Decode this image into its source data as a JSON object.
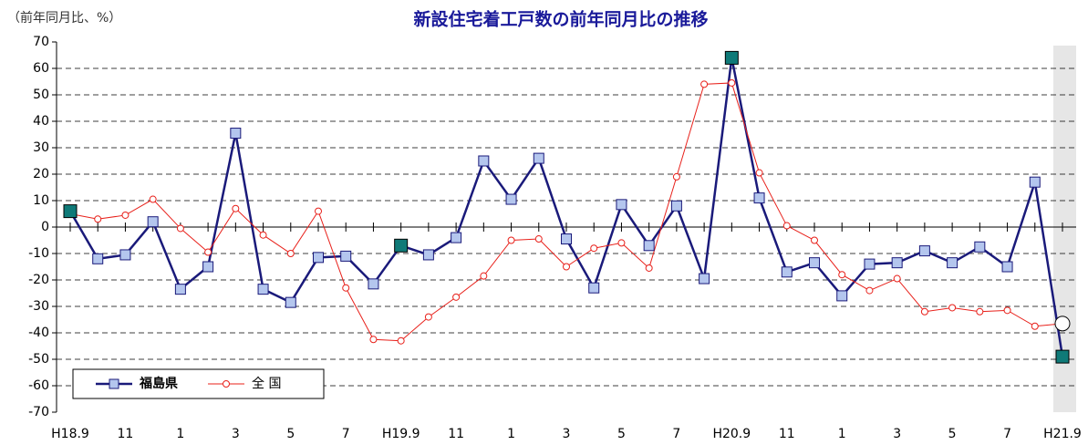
{
  "chart_data": {
    "type": "line",
    "title": "新設住宅着工戸数の前年同月比の推移",
    "y_axis_label": "（前年同月比、%）",
    "categories": [
      "H18.9",
      null,
      "11",
      null,
      "1",
      null,
      "3",
      null,
      "5",
      null,
      "7",
      null,
      "H19.9",
      null,
      "11",
      null,
      "1",
      null,
      "3",
      null,
      "5",
      null,
      "7",
      null,
      "H20.9",
      null,
      "11",
      null,
      "1",
      null,
      "3",
      null,
      "5",
      null,
      "7",
      null,
      "H21.9"
    ],
    "series": [
      {
        "name": "福島県",
        "color": "#1a1a7a",
        "marker_color": "#b4c6ee",
        "values": [
          6,
          -12,
          -10.5,
          2,
          -23.5,
          -15,
          35.5,
          -23.5,
          -28.5,
          -11.5,
          -11,
          -21.5,
          -7,
          -10.5,
          -4,
          25,
          10.5,
          26,
          -4.5,
          -23,
          8.5,
          -7,
          8,
          -19.5,
          64,
          11,
          -17,
          -13.5,
          -26,
          -14,
          -13.5,
          -9,
          -13.5,
          -7.5,
          -15,
          17,
          -49
        ]
      },
      {
        "name": "全 国",
        "color": "#e8201a",
        "marker_color": "#ffffff",
        "values": [
          5,
          3,
          4.5,
          10.5,
          -0.5,
          -9.5,
          7,
          -3,
          -10,
          6,
          -23,
          -42.5,
          -43,
          -34,
          -26.5,
          -18.5,
          -5,
          -4.5,
          -15,
          -8,
          -6,
          -15.5,
          19,
          54,
          54.5,
          20.5,
          0.5,
          -5,
          -18,
          -24,
          -19.5,
          -32,
          -30.5,
          -32,
          -31.5,
          -37.5,
          -36.5
        ]
      }
    ],
    "highlight_color": "#0f7a78",
    "ylim": [
      -70,
      70
    ],
    "yticks": [
      -70,
      -60,
      -50,
      -40,
      -30,
      -20,
      -10,
      0,
      10,
      20,
      30,
      40,
      50,
      60,
      70
    ],
    "grid": true
  }
}
